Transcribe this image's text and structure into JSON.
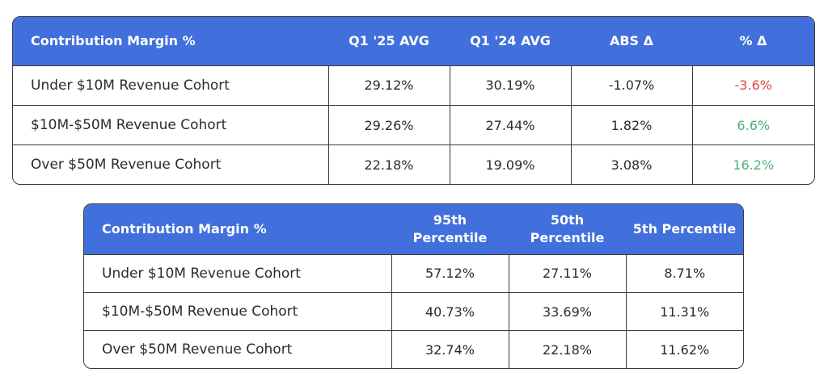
{
  "table1": {
    "headers": [
      "Contribution Margin %",
      "Q1 '25 AVG",
      "Q1 '24 AVG",
      "ABS Δ",
      "% Δ"
    ],
    "rows": [
      {
        "label": "Under $10M Revenue Cohort",
        "q1_25": "29.12%",
        "q1_24": "30.19%",
        "abs": "-1.07%",
        "pct": "-3.6%"
      },
      {
        "label": "$10M-$50M Revenue Cohort",
        "q1_25": "29.26%",
        "q1_24": "27.44%",
        "abs": "1.82%",
        "pct": "6.6%"
      },
      {
        "label": "Over $50M Revenue Cohort",
        "q1_25": "22.18%",
        "q1_24": "19.09%",
        "abs": "3.08%",
        "pct": "16.2%"
      }
    ]
  },
  "table2": {
    "headers": [
      "Contribution Margin %",
      "95th Percentile",
      "50th Percentile",
      "5th Percentile"
    ],
    "rows": [
      {
        "label": "Under $10M Revenue Cohort",
        "p95": "57.12%",
        "p50": "27.11%",
        "p5": "8.71%"
      },
      {
        "label": "$10M-$50M Revenue Cohort",
        "p95": "40.73%",
        "p50": "33.69%",
        "p5": "11.31%"
      },
      {
        "label": "Over $50M Revenue Cohort",
        "p95": "32.74%",
        "p50": "22.18%",
        "p5": "11.62%"
      }
    ]
  },
  "colors": {
    "header_bg": "#4170dc",
    "negative": "#e0473e",
    "positive": "#4cb07a"
  }
}
